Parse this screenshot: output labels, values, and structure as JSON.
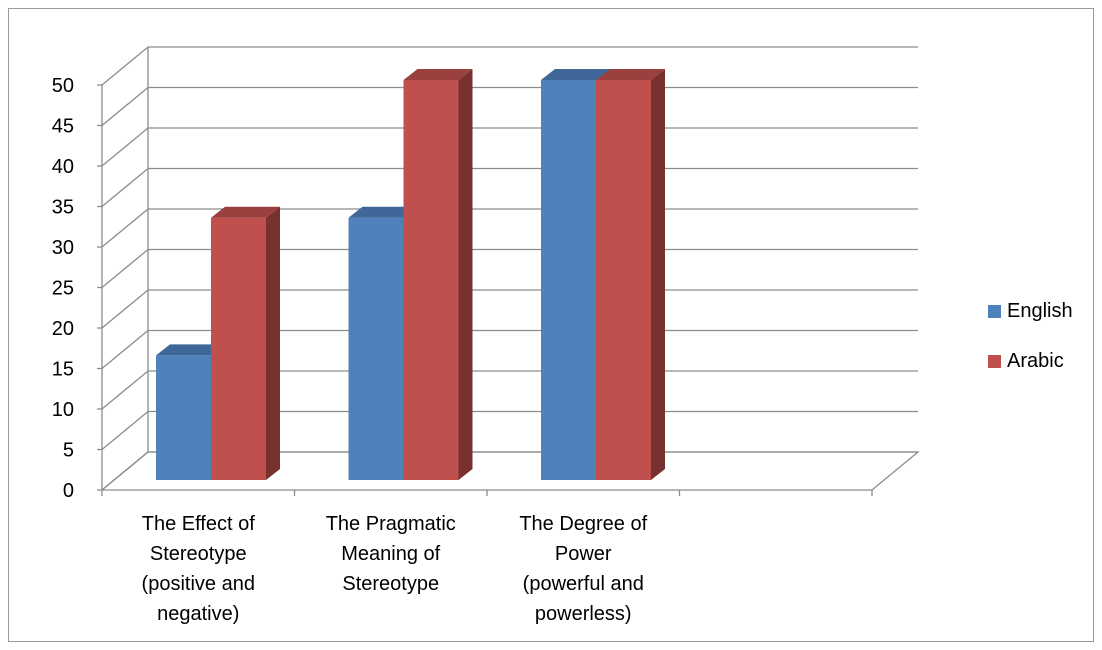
{
  "chart_data": {
    "type": "bar",
    "categories": [
      "The Effect of Stereotype (positive and negative)",
      "The Pragmatic Meaning of Stereotype",
      "The Degree of Power (powerful and powerless)"
    ],
    "category_lines": [
      [
        "The Effect of",
        "Stereotype",
        "(positive and",
        "negative)"
      ],
      [
        "The Pragmatic",
        "Meaning of",
        "Stereotype"
      ],
      [
        "The Degree of",
        "Power",
        "(powerful and",
        "powerless)"
      ]
    ],
    "series": [
      {
        "name": "English",
        "values": [
          16,
          33,
          50
        ],
        "color": "#4f81bd"
      },
      {
        "name": "Arabic",
        "values": [
          33,
          50,
          50
        ],
        "color": "#c0504d"
      }
    ],
    "ylim": [
      0,
      50
    ],
    "y_ticks": [
      "0",
      "5",
      "10",
      "15",
      "20",
      "25",
      "30",
      "35",
      "40",
      "45",
      "50"
    ],
    "grid": true,
    "legend_position": "right",
    "style": "3d-clustered-column"
  }
}
